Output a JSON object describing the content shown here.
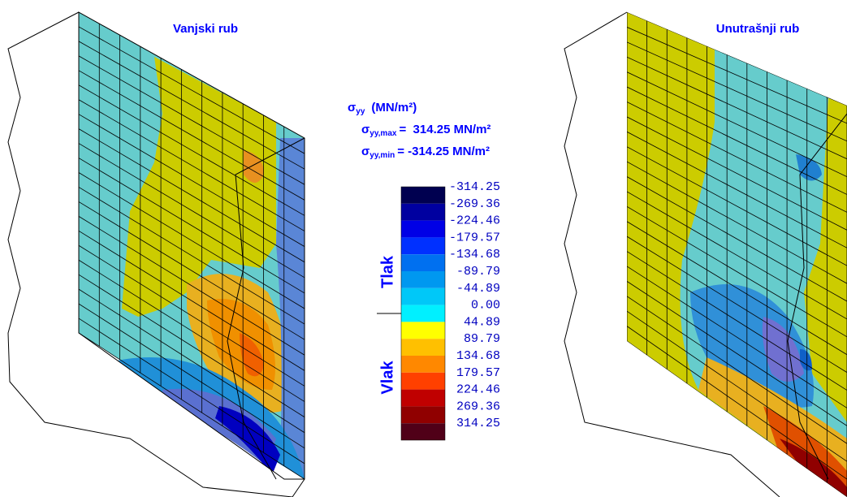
{
  "panels": [
    {
      "title": "Vanjski rub"
    },
    {
      "title": "Unutrašnji rub"
    }
  ],
  "legend": {
    "header": {
      "symbol": "σ",
      "subscript": "yy",
      "unit": "(MN/m²)"
    },
    "max": {
      "symbol": "σ",
      "subscript": "yy,max",
      "text": "=  314.25 MN/m²"
    },
    "min": {
      "symbol": "σ",
      "subscript": "yy,min",
      "text": "= -314.25 MN/m²"
    },
    "labels": [
      "-314.25",
      "-269.36",
      "-224.46",
      "-179.57",
      "-134.68",
      "-89.79",
      "-44.89",
      "0.00",
      "44.89",
      "89.79",
      "134.68",
      "179.57",
      "224.46",
      "269.36",
      "314.25"
    ],
    "colors": [
      "#000050",
      "#0000a0",
      "#0000e6",
      "#0030ff",
      "#0070f0",
      "#0098f0",
      "#00c8f8",
      "#00f0ff",
      "#ffff00",
      "#ffc000",
      "#ff8800",
      "#ff4000",
      "#c00000",
      "#900000",
      "#500018"
    ],
    "compression": "Tlak",
    "tension": "Vlak"
  }
}
